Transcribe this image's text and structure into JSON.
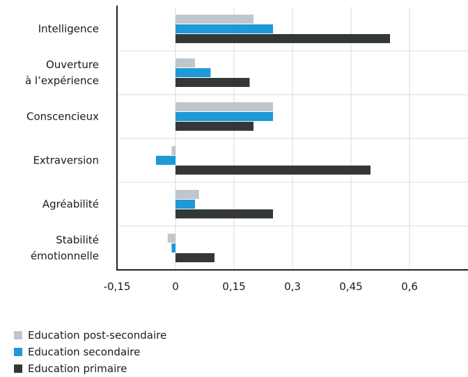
{
  "chart_data": {
    "type": "bar",
    "orientation": "horizontal",
    "categories": [
      [
        "Intelligence"
      ],
      [
        "Ouverture",
        "à l’expérience"
      ],
      [
        "Conscencieux"
      ],
      [
        "Extraversion"
      ],
      [
        "Agréabilité"
      ],
      [
        "Stabilité",
        "émotionnelle"
      ]
    ],
    "series": [
      {
        "name": "Education post-secondaire",
        "color": "#bfc6ce",
        "values": [
          0.2,
          0.05,
          0.25,
          -0.01,
          0.06,
          -0.02
        ]
      },
      {
        "name": "Education secondaire",
        "color": "#1e9ad6",
        "values": [
          0.25,
          0.09,
          0.25,
          -0.05,
          0.05,
          -0.01
        ]
      },
      {
        "name": "Education primaire",
        "color": "#333735",
        "values": [
          0.55,
          0.19,
          0.2,
          0.5,
          0.25,
          0.1
        ]
      }
    ],
    "xlim": [
      -0.15,
      0.75
    ],
    "xticks": [
      -0.15,
      0,
      0.15,
      0.3,
      0.45,
      0.6
    ],
    "xtick_labels": [
      "-0,15",
      "0",
      "0,15",
      "0,3",
      "0,45",
      "0,6"
    ],
    "grid": true,
    "legend_position": "bottom-left"
  }
}
